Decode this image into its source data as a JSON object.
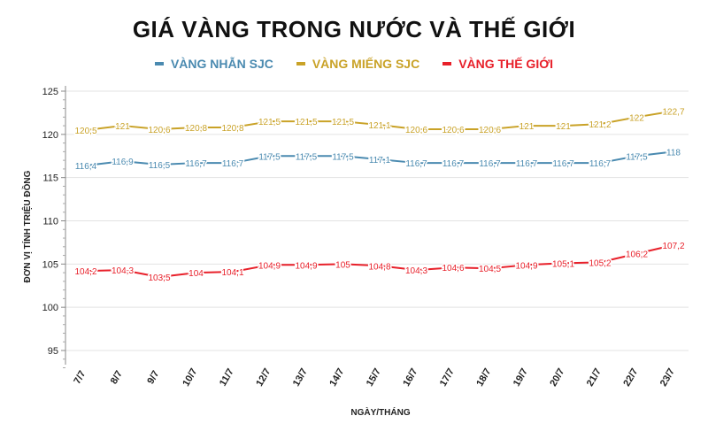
{
  "chart_data": {
    "type": "line",
    "title": "GIÁ VÀNG TRONG NƯỚC VÀ THẾ GIỚI",
    "xlabel": "NGÀY/THÁNG",
    "ylabel": "ĐƠN VỊ TÍNH TRIỆU ĐỒNG",
    "ylim": [
      92,
      125
    ],
    "yticks": [
      95,
      100,
      105,
      110,
      115,
      120,
      125
    ],
    "categories": [
      "7/7",
      "8/7",
      "9/7",
      "10/7",
      "11/7",
      "12/7",
      "13/7",
      "14/7",
      "15/7",
      "16/7",
      "17/7",
      "18/7",
      "19/7",
      "20/7",
      "21/7",
      "22/7",
      "23/7"
    ],
    "series": [
      {
        "name": "VÀNG NHẪN SJC",
        "color": "#4a8ab0",
        "values": [
          116.4,
          116.9,
          116.5,
          116.7,
          116.7,
          117.5,
          117.5,
          117.5,
          117.1,
          116.7,
          116.7,
          116.7,
          116.7,
          116.7,
          116.7,
          117.5,
          118
        ],
        "labels": [
          "116,4",
          "116,9",
          "116,5",
          "116,7",
          "116,7",
          "117,5",
          "117,5",
          "117,5",
          "117,1",
          "116,7",
          "116,7",
          "116,7",
          "116,7",
          "116,7",
          "116,7",
          "117,5",
          "118"
        ]
      },
      {
        "name": "VÀNG MIẾNG SJC",
        "color": "#c9a227",
        "values": [
          120.5,
          121,
          120.6,
          120.8,
          120.8,
          121.5,
          121.5,
          121.5,
          121.1,
          120.6,
          120.6,
          120.6,
          121,
          121,
          121.2,
          122,
          122.7
        ],
        "labels": [
          "120,5",
          "121",
          "120,6",
          "120,8",
          "120,8",
          "121,5",
          "121,5",
          "121,5",
          "121,1",
          "120,6",
          "120,6",
          "120,6",
          "121",
          "121",
          "121,2",
          "122",
          "122,7"
        ]
      },
      {
        "name": "VÀNG THẾ GIỚI",
        "color": "#e8202a",
        "values": [
          104.2,
          104.3,
          103.5,
          104,
          104.1,
          104.9,
          104.9,
          105,
          104.8,
          104.3,
          104.6,
          104.5,
          104.9,
          105.1,
          105.2,
          106.2,
          107.2
        ],
        "labels": [
          "104,2",
          "104,3",
          "103,5",
          "104",
          "104,1",
          "104,9",
          "104,9",
          "105",
          "104,8",
          "104,3",
          "104,6",
          "104,5",
          "104,9",
          "105,1",
          "105,2",
          "106,2",
          "107,2"
        ]
      }
    ],
    "grid": true,
    "legend_position": "top-center"
  }
}
